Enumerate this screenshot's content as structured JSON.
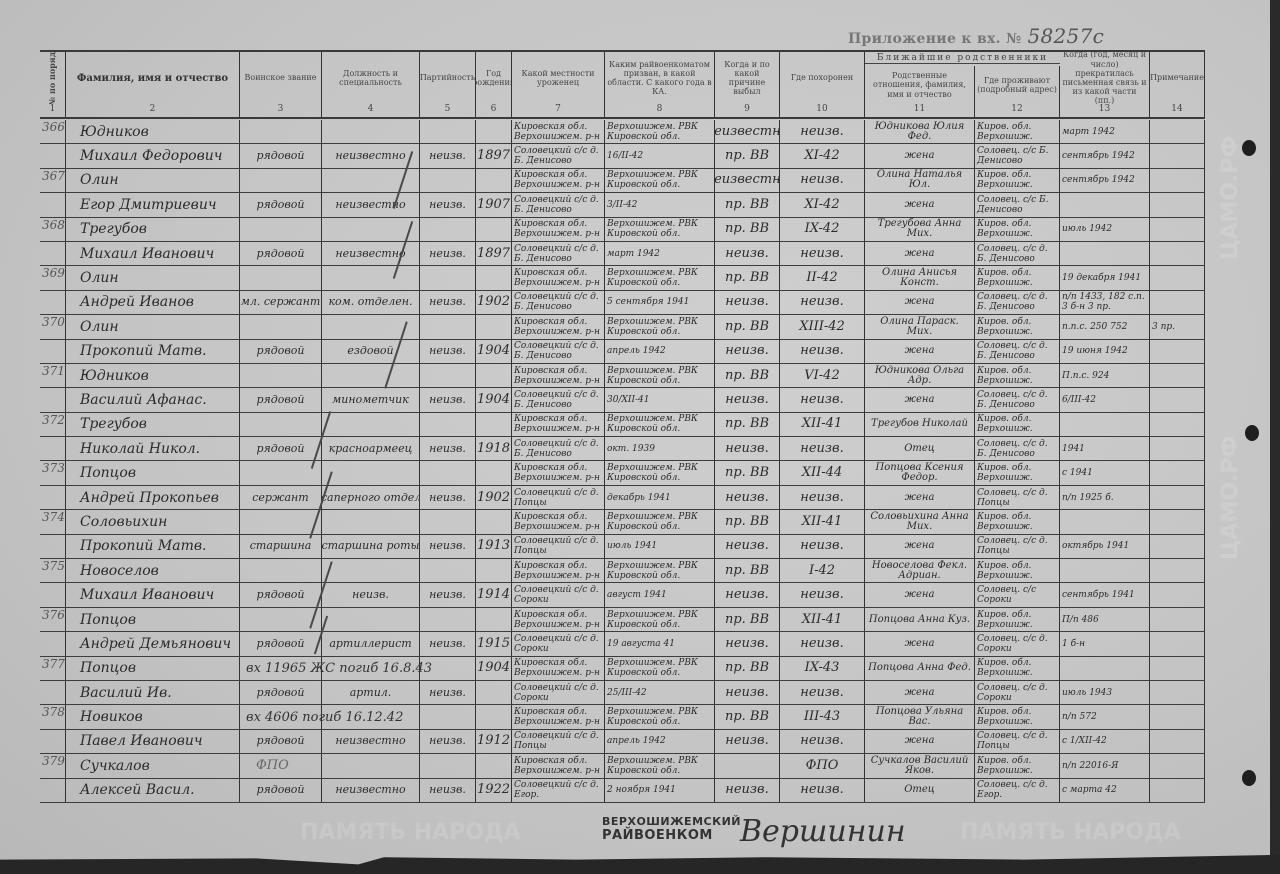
{
  "header": {
    "appendix_label": "Приложение к вх. №",
    "appendix_number": "58257с",
    "relatives_group": "Ближайшие родственники",
    "columns": [
      {
        "num": "1",
        "label": "№№ по порядку"
      },
      {
        "num": "2",
        "label": "Фамилия, имя и отчество"
      },
      {
        "num": "3",
        "label": "Воинское звание"
      },
      {
        "num": "4",
        "label": "Должность и специальность"
      },
      {
        "num": "5",
        "label": "Партийность"
      },
      {
        "num": "6",
        "label": "Год рождения"
      },
      {
        "num": "7",
        "label": "Какой местности уроженец"
      },
      {
        "num": "8",
        "label": "Каким райвоенкоматом призван, в какой области. С какого года в КА."
      },
      {
        "num": "9",
        "label": "Когда и по какой причине выбыл"
      },
      {
        "num": "10",
        "label": "Где похоронен"
      },
      {
        "num": "11",
        "label": "Родственные отношения, фамилия, имя и отчество"
      },
      {
        "num": "12",
        "label": "Где проживают (подробный адрес)"
      },
      {
        "num": "13",
        "label": "Когда (год, месяц и число) прекратилась письменная связь и из какой части (пп.)"
      },
      {
        "num": "14",
        "label": "Примечание"
      }
    ]
  },
  "rows": [
    [
      "366",
      "Юдников",
      "",
      "",
      "",
      "",
      "Кировская обл. Верхошижем. р-н",
      "Верхошижем. РВК Кировской обл.",
      "неизвестно",
      "неизв.",
      "Юдникова Юлия Фед.",
      "Киров. обл. Верхошиж.",
      "март 1942",
      ""
    ],
    [
      "",
      "Михаил Федорович",
      "рядовой",
      "неизвестно",
      "неизв.",
      "1897",
      "Соловецкий с/с д. Б. Денисово",
      "16/II-42",
      "пр. ВВ",
      "XI-42",
      "жена",
      "Соловец. с/с Б. Денисово",
      "сентябрь 1942",
      ""
    ],
    [
      "367",
      "Олин",
      "",
      "",
      "",
      "",
      "Кировская обл. Верхошижем. р-н",
      "Верхошижем. РВК Кировской обл.",
      "неизвестно",
      "неизв.",
      "Олина Наталья Юл.",
      "Киров. обл. Верхошиж.",
      "сентябрь 1942",
      ""
    ],
    [
      "",
      "Егор Дмитриевич",
      "рядовой",
      "неизвестно",
      "неизв.",
      "1907",
      "Соловецкий с/с д. Б. Денисово",
      "3/II-42",
      "пр. ВВ",
      "XI-42",
      "жена",
      "Соловец. с/с Б. Денисово",
      "",
      ""
    ],
    [
      "368",
      "Трегубов",
      "",
      "",
      "",
      "",
      "Кировская обл. Верхошижем. р-н",
      "Верхошижем. РВК Кировской обл.",
      "пр. ВВ",
      "IX-42",
      "Трегубова Анна Мих.",
      "Киров. обл. Верхошиж.",
      "июль 1942",
      ""
    ],
    [
      "",
      "Михаил Иванович",
      "рядовой",
      "неизвестно",
      "неизв.",
      "1897",
      "Соловецкий с/с д. Б. Денисово",
      "март 1942",
      "неизв.",
      "неизв.",
      "жена",
      "Соловец. с/с д. Б. Денисово",
      "",
      ""
    ],
    [
      "369",
      "Олин",
      "",
      "",
      "",
      "",
      "Кировская обл. Верхошижем. р-н",
      "Верхошижем. РВК Кировской обл.",
      "пр. ВВ",
      "II-42",
      "Олина Анисья Конст.",
      "Киров. обл. Верхошиж.",
      "19 декабря 1941",
      ""
    ],
    [
      "",
      "Андрей Иванов",
      "мл. сержант",
      "ком. отделен.",
      "неизв.",
      "1902",
      "Соловецкий с/с д. Б. Денисово",
      "5 сентября 1941",
      "неизв.",
      "неизв.",
      "жена",
      "Соловец. с/с д. Б. Денисово",
      "п/п 1433, 182 с.п. 3 б-н 3 пр.",
      ""
    ],
    [
      "370",
      "Олин",
      "",
      "",
      "",
      "",
      "Кировская обл. Верхошижем. р-н",
      "Верхошижем. РВК Кировской обл.",
      "пр. ВВ",
      "XIII-42",
      "Олина Параск. Мих.",
      "Киров. обл. Верхошиж.",
      "п.п.с. 250 752",
      "3 пр."
    ],
    [
      "",
      "Прокопий Матв.",
      "рядовой",
      "ездовой",
      "неизв.",
      "1904",
      "Соловецкий с/с д. Б. Денисово",
      "апрель 1942",
      "неизв.",
      "неизв.",
      "жена",
      "Соловец. с/с д. Б. Денисово",
      "19 июня 1942",
      ""
    ],
    [
      "371",
      "Юдников",
      "",
      "",
      "",
      "",
      "Кировская обл. Верхошижем. р-н",
      "Верхошижем. РВК Кировской обл.",
      "пр. ВВ",
      "VI-42",
      "Юдникова Ольга Адр.",
      "Киров. обл. Верхошиж.",
      "П.п.с. 924",
      ""
    ],
    [
      "",
      "Василий Афанас.",
      "рядовой",
      "минометчик",
      "неизв.",
      "1904",
      "Соловецкий с/с д. Б. Денисово",
      "30/XII-41",
      "неизв.",
      "неизв.",
      "жена",
      "Соловец. с/с д. Б. Денисово",
      "6/III-42",
      ""
    ],
    [
      "372",
      "Трегубов",
      "",
      "",
      "",
      "",
      "Кировская обл. Верхошижем. р-н",
      "Верхошижем. РВК Кировской обл.",
      "пр. ВВ",
      "XII-41",
      "Трегубов Николай",
      "Киров. обл. Верхошиж.",
      "",
      ""
    ],
    [
      "",
      "Николай Никол.",
      "рядовой",
      "красноармеец",
      "неизв.",
      "1918",
      "Соловецкий с/с д. Б. Денисово",
      "окт. 1939",
      "неизв.",
      "неизв.",
      "Отец",
      "Соловец. с/с д. Б. Денисово",
      "1941",
      ""
    ],
    [
      "373",
      "Попцов",
      "",
      "",
      "",
      "",
      "Кировская обл. Верхошижем. р-н",
      "Верхошижем. РВК Кировской обл.",
      "пр. ВВ",
      "XII-44",
      "Попцова Ксения Федор.",
      "Киров. обл. Верхошиж.",
      "с 1941",
      ""
    ],
    [
      "",
      "Андрей Прокопьев",
      "сержант",
      "ком. саперного отделения",
      "неизв.",
      "1902",
      "Соловецкий с/с д. Попцы",
      "декабрь 1941",
      "неизв.",
      "неизв.",
      "жена",
      "Соловец. с/с д. Попцы",
      "п/п 1925 б.",
      ""
    ],
    [
      "374",
      "Соловьихин",
      "",
      "",
      "",
      "",
      "Кировская обл. Верхошижем. р-н",
      "Верхошижем. РВК Кировской обл.",
      "пр. ВВ",
      "XII-41",
      "Соловьихина Анна Мих.",
      "Киров. обл. Верхошиж.",
      "",
      ""
    ],
    [
      "",
      "Прокопий Матв.",
      "старшина",
      "старшина роты",
      "неизв.",
      "1913",
      "Соловецкий с/с д. Попцы",
      "июль 1941",
      "неизв.",
      "неизв.",
      "жена",
      "Соловец. с/с д. Попцы",
      "октябрь 1941",
      ""
    ],
    [
      "375",
      "Новоселов",
      "",
      "",
      "",
      "",
      "Кировская обл. Верхошижем. р-н",
      "Верхошижем. РВК Кировской обл.",
      "пр. ВВ",
      "I-42",
      "Новоселова Фекл. Адриан.",
      "Киров. обл. Верхошиж.",
      "",
      ""
    ],
    [
      "",
      "Михаил Иванович",
      "рядовой",
      "неизв.",
      "неизв.",
      "1914",
      "Соловецкий с/с д. Сороки",
      "август 1941",
      "неизв.",
      "неизв.",
      "жена",
      "Соловец. с/с Сороки",
      "сентябрь 1941",
      ""
    ],
    [
      "376",
      "Попцов",
      "",
      "",
      "",
      "",
      "Кировская обл. Верхошижем. р-н",
      "Верхошижем. РВК Кировской обл.",
      "пр. ВВ",
      "XII-41",
      "Попцова Анна Куз.",
      "Киров. обл. Верхошиж.",
      "П/п 486",
      ""
    ],
    [
      "",
      "Андрей Демьянович",
      "рядовой",
      "артиллерист",
      "неизв.",
      "1915",
      "Соловецкий с/с д. Сороки",
      "19 августа 41",
      "неизв.",
      "неизв.",
      "жена",
      "Соловец. с/с д. Сороки",
      "1 б-н",
      ""
    ],
    [
      "377",
      "Попцов",
      "",
      "",
      "",
      "1904",
      "Кировская обл. Верхошижем. р-н",
      "Верхошижем. РВК Кировской обл.",
      "пр. ВВ",
      "IX-43",
      "Попцова Анна Фед.",
      "Киров. обл. Верхошиж.",
      "",
      ""
    ],
    [
      "",
      "Василий Ив.",
      "рядовой",
      "артил.",
      "неизв.",
      "",
      "Соловецкий с/с д. Сороки",
      "25/III-42",
      "неизв.",
      "неизв.",
      "жена",
      "Соловец. с/с д. Сороки",
      "июль 1943",
      ""
    ],
    [
      "378",
      "Новиков",
      "",
      "",
      "",
      "",
      "Кировская обл. Верхошижем. р-н",
      "Верхошижем. РВК Кировской обл.",
      "пр. ВВ",
      "III-43",
      "Попцова Ульяна Вас.",
      "Киров. обл. Верхошиж.",
      "п/п 572",
      ""
    ],
    [
      "",
      "Павел Иванович",
      "рядовой",
      "неизвестно",
      "неизв.",
      "1912",
      "Соловецкий с/с д. Попцы",
      "апрель 1942",
      "неизв.",
      "неизв.",
      "жена",
      "Соловец. с/с д. Попцы",
      "с 1/XII-42",
      ""
    ],
    [
      "379",
      "Сучкалов",
      "",
      "",
      "",
      "",
      "Кировская обл. Верхошижем. р-н",
      "Верхошижем. РВК Кировской обл.",
      "",
      "ФПО",
      "Сучкалов Василий Яков.",
      "Киров. обл. Верхошиж.",
      "п/п 22016-Я",
      ""
    ],
    [
      "",
      "Алексей Васил.",
      "рядовой",
      "неизвестно",
      "неизв.",
      "1922",
      "Соловецкий с/с д. Егор.",
      "2 ноября 1941",
      "неизв.",
      "неизв.",
      "Отец",
      "Соловец. с/с д. Егор.",
      "с марта 42",
      ""
    ]
  ],
  "annotations": {
    "note_377": "вх 11965 ЖС погиб 16.8.43",
    "note_378": "вх 4606 погиб 16.12.42",
    "note_379": "ФПО"
  },
  "footer": {
    "stamp_line1": "ВЕРХОШИЖЕМСКИЙ",
    "stamp_line2": "РАЙВОЕНКОМ",
    "signature": "Вершинин"
  },
  "watermarks": [
    "ПАМЯТЬ НАРОДА",
    "ЦАМО.РФ"
  ]
}
